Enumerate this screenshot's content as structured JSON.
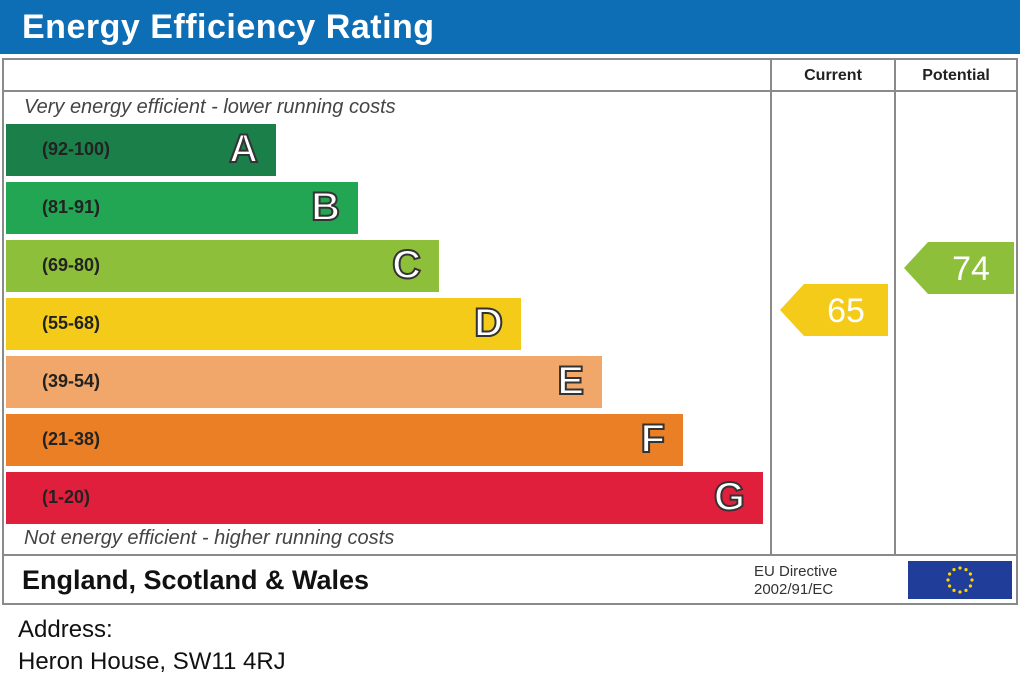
{
  "header": {
    "title": "Energy Efficiency Rating"
  },
  "columns": {
    "current": "Current",
    "potential": "Potential"
  },
  "notes": {
    "top": "Very energy efficient - lower running costs",
    "bottom": "Not energy efficient - higher running costs"
  },
  "chart_data": {
    "type": "bar",
    "title": "Energy Efficiency Rating",
    "bands": [
      {
        "range": "(92-100)",
        "letter": "A",
        "color": "#1b7f4a"
      },
      {
        "range": "(81-91)",
        "letter": "B",
        "color": "#23a653"
      },
      {
        "range": "(69-80)",
        "letter": "C",
        "color": "#8dbf3a"
      },
      {
        "range": "(55-68)",
        "letter": "D",
        "color": "#f4cb18"
      },
      {
        "range": "(39-54)",
        "letter": "E",
        "color": "#f0a769"
      },
      {
        "range": "(21-38)",
        "letter": "F",
        "color": "#eb7f25"
      },
      {
        "range": "(1-20)",
        "letter": "G",
        "color": "#e01f3c"
      }
    ],
    "current": {
      "value": "65",
      "color": "#f4cb18"
    },
    "potential": {
      "value": "74",
      "color": "#8dbf3a"
    }
  },
  "footer": {
    "region": "England, Scotland & Wales",
    "directive_line1": "EU Directive",
    "directive_line2": "2002/91/EC"
  },
  "address": {
    "label": "Address:",
    "value": "Heron House, SW11 4RJ"
  }
}
